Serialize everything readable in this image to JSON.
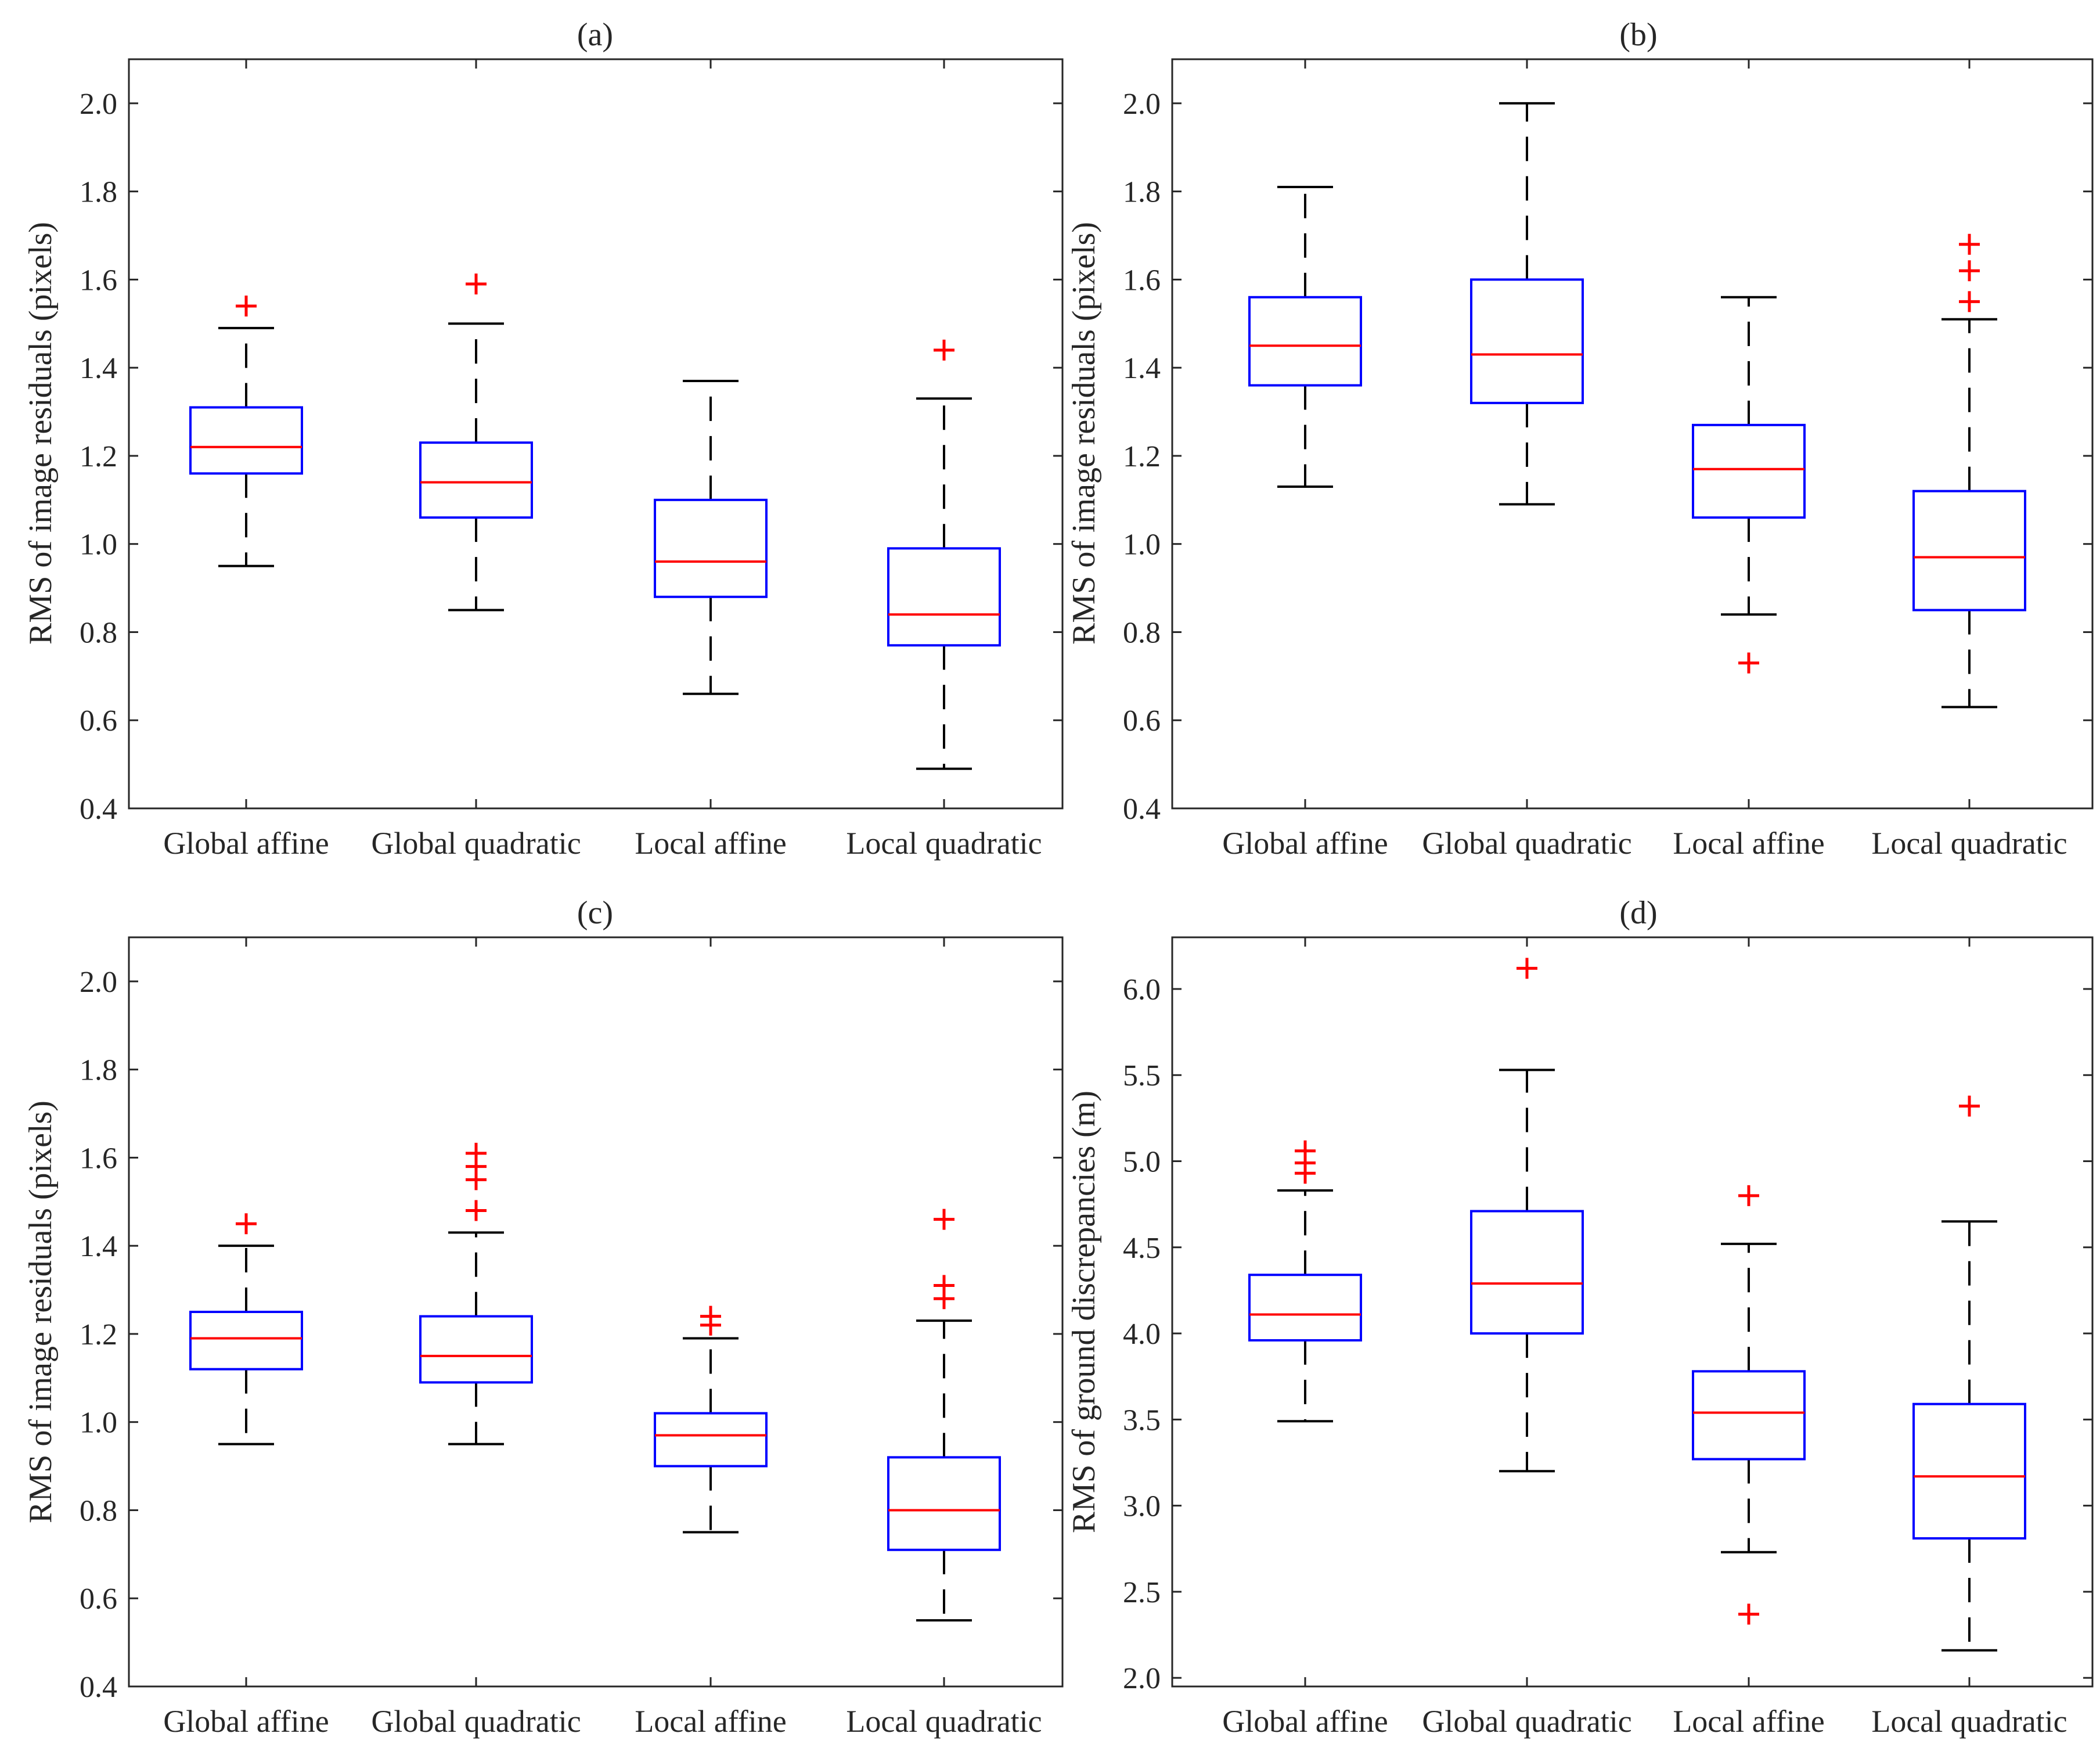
{
  "chart_data": [
    {
      "type": "boxplot",
      "title": "(a)",
      "xlabel": "",
      "ylabel": "RMS of image residuals (pixels)",
      "ylim": [
        0.4,
        2.1
      ],
      "yticks": [
        "0.4",
        "0.6",
        "0.8",
        "1.0",
        "1.2",
        "1.4",
        "1.6",
        "1.8",
        "2.0"
      ],
      "categories": [
        "Global affine",
        "Global quadratic",
        "Local affine",
        "Local quadratic"
      ],
      "boxes": [
        {
          "lower_whisker": 0.95,
          "q1": 1.16,
          "median": 1.22,
          "q3": 1.31,
          "upper_whisker": 1.49,
          "outliers": [
            1.54
          ]
        },
        {
          "lower_whisker": 0.85,
          "q1": 1.06,
          "median": 1.14,
          "q3": 1.23,
          "upper_whisker": 1.5,
          "outliers": [
            1.59
          ]
        },
        {
          "lower_whisker": 0.66,
          "q1": 0.88,
          "median": 0.96,
          "q3": 1.1,
          "upper_whisker": 1.37,
          "outliers": []
        },
        {
          "lower_whisker": 0.49,
          "q1": 0.77,
          "median": 0.84,
          "q3": 0.99,
          "upper_whisker": 1.33,
          "outliers": [
            1.44
          ]
        }
      ]
    },
    {
      "type": "boxplot",
      "title": "(b)",
      "xlabel": "",
      "ylabel": "RMS of image residuals (pixels)",
      "ylim": [
        0.4,
        2.1
      ],
      "yticks": [
        "0.4",
        "0.6",
        "0.8",
        "1.0",
        "1.2",
        "1.4",
        "1.6",
        "1.8",
        "2.0"
      ],
      "categories": [
        "Global affine",
        "Global quadratic",
        "Local affine",
        "Local quadratic"
      ],
      "boxes": [
        {
          "lower_whisker": 1.13,
          "q1": 1.36,
          "median": 1.45,
          "q3": 1.56,
          "upper_whisker": 1.81,
          "outliers": []
        },
        {
          "lower_whisker": 1.09,
          "q1": 1.32,
          "median": 1.43,
          "q3": 1.6,
          "upper_whisker": 2.0,
          "outliers": []
        },
        {
          "lower_whisker": 0.84,
          "q1": 1.06,
          "median": 1.17,
          "q3": 1.27,
          "upper_whisker": 1.56,
          "outliers": [
            0.73
          ]
        },
        {
          "lower_whisker": 0.63,
          "q1": 0.85,
          "median": 0.97,
          "q3": 1.12,
          "upper_whisker": 1.51,
          "outliers": [
            1.55,
            1.62,
            1.68
          ]
        }
      ]
    },
    {
      "type": "boxplot",
      "title": "(c)",
      "xlabel": "",
      "ylabel": "RMS of image residuals (pixels)",
      "ylim": [
        0.4,
        2.1
      ],
      "yticks": [
        "0.4",
        "0.6",
        "0.8",
        "1.0",
        "1.2",
        "1.4",
        "1.6",
        "1.8",
        "2.0"
      ],
      "categories": [
        "Global affine",
        "Global quadratic",
        "Local affine",
        "Local quadratic"
      ],
      "boxes": [
        {
          "lower_whisker": 0.95,
          "q1": 1.12,
          "median": 1.19,
          "q3": 1.25,
          "upper_whisker": 1.4,
          "outliers": [
            1.45
          ]
        },
        {
          "lower_whisker": 0.95,
          "q1": 1.09,
          "median": 1.15,
          "q3": 1.24,
          "upper_whisker": 1.43,
          "outliers": [
            1.48,
            1.55,
            1.58,
            1.61
          ]
        },
        {
          "lower_whisker": 0.75,
          "q1": 0.9,
          "median": 0.97,
          "q3": 1.02,
          "upper_whisker": 1.19,
          "outliers": [
            1.22,
            1.24
          ]
        },
        {
          "lower_whisker": 0.55,
          "q1": 0.71,
          "median": 0.8,
          "q3": 0.92,
          "upper_whisker": 1.23,
          "outliers": [
            1.28,
            1.31,
            1.46
          ]
        }
      ]
    },
    {
      "type": "boxplot",
      "title": "(d)",
      "xlabel": "",
      "ylabel": "RMS of ground discrepancies (m)",
      "ylim": [
        1.95,
        6.3
      ],
      "yticks": [
        "2.0",
        "2.5",
        "3.0",
        "3.5",
        "4.0",
        "4.5",
        "5.0",
        "5.5",
        "6.0"
      ],
      "categories": [
        "Global affine",
        "Global quadratic",
        "Local affine",
        "Local quadratic"
      ],
      "boxes": [
        {
          "lower_whisker": 3.49,
          "q1": 3.96,
          "median": 4.11,
          "q3": 4.34,
          "upper_whisker": 4.83,
          "outliers": [
            4.93,
            4.99,
            5.06
          ]
        },
        {
          "lower_whisker": 3.2,
          "q1": 4.0,
          "median": 4.29,
          "q3": 4.71,
          "upper_whisker": 5.53,
          "outliers": [
            6.12
          ]
        },
        {
          "lower_whisker": 2.73,
          "q1": 3.27,
          "median": 3.54,
          "q3": 3.78,
          "upper_whisker": 4.52,
          "outliers": [
            2.37,
            4.8
          ]
        },
        {
          "lower_whisker": 2.16,
          "q1": 2.81,
          "median": 3.17,
          "q3": 3.59,
          "upper_whisker": 4.65,
          "outliers": [
            5.32
          ]
        }
      ]
    }
  ],
  "colors": {
    "box": "#0000ff",
    "median": "#ff0000",
    "whisker": "#000000",
    "outlier": "#ff0000",
    "axes": "#262626"
  }
}
